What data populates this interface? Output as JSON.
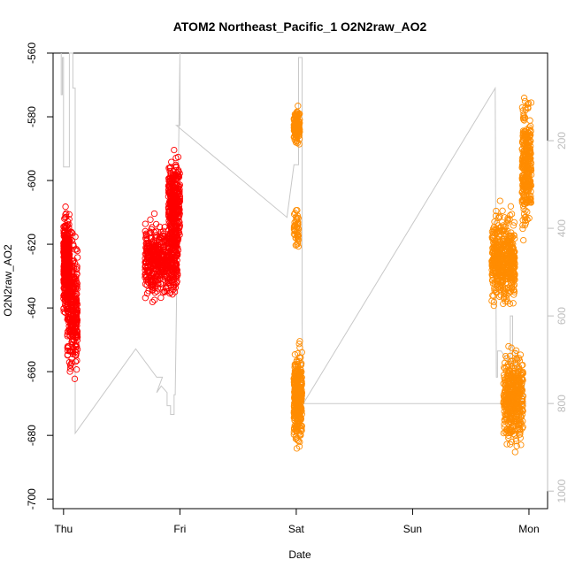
{
  "chart_data": {
    "type": "scatter",
    "title": "ATOM2 Northeast_Pacific_1 O2N2raw_AO2",
    "xlabel": "Date",
    "ylabel": "O2N2raw_AO2",
    "x_ticks": [
      "Thu",
      "Fri",
      "Sat",
      "Sun",
      "Mon"
    ],
    "x_range": [
      -0.09,
      4.16
    ],
    "ylim": [
      -703,
      -560
    ],
    "y_ticks": [
      -700,
      -680,
      -660,
      -640,
      -620,
      -600,
      -580,
      -560
    ],
    "y2_ticks": [
      200,
      400,
      600,
      800,
      1000
    ],
    "y2lim": [
      0,
      1040
    ],
    "grid": false,
    "colors": {
      "series1": "#ff0000",
      "series2": "#ff8c00",
      "secondary_line": "#c8c8c8"
    },
    "series": [
      {
        "color": "#ff0000",
        "clusters": [
          {
            "x_start": 0.0,
            "x_end": 0.05,
            "y_min": -654,
            "y_max": -595,
            "center": -626,
            "n": 420
          },
          {
            "x_start": 0.03,
            "x_end": 0.12,
            "y_min": -677,
            "y_max": -593,
            "center": -640,
            "n": 320
          },
          {
            "x_start": 0.7,
            "x_end": 0.98,
            "y_min": -646,
            "y_max": -602,
            "center": -625,
            "n": 520
          },
          {
            "x_start": 0.9,
            "x_end": 1.0,
            "y_min": -640,
            "y_max": -585,
            "center": -608,
            "n": 360
          }
        ]
      },
      {
        "color": "#ff8c00",
        "clusters": [
          {
            "x_start": 1.98,
            "x_end": 2.03,
            "y_min": -592,
            "y_max": -572,
            "center": -583,
            "n": 140
          },
          {
            "x_start": 1.98,
            "x_end": 2.02,
            "y_min": -630,
            "y_max": -600,
            "center": -615,
            "n": 50
          },
          {
            "x_start": 1.98,
            "x_end": 2.05,
            "y_min": -696,
            "y_max": -642,
            "center": -668,
            "n": 360
          },
          {
            "x_start": 3.68,
            "x_end": 3.88,
            "y_min": -650,
            "y_max": -595,
            "center": -625,
            "n": 520
          },
          {
            "x_start": 3.78,
            "x_end": 3.95,
            "y_min": -697,
            "y_max": -640,
            "center": -668,
            "n": 420
          },
          {
            "x_start": 3.94,
            "x_end": 4.02,
            "y_min": -640,
            "y_max": -564,
            "center": -595,
            "n": 320
          }
        ]
      }
    ],
    "secondary_line": {
      "x": [
        -0.02,
        -0.02,
        -0.01,
        -0.01,
        0.0,
        0.0,
        0.05,
        0.05,
        0.08,
        0.08,
        0.1,
        0.1,
        0.1,
        0.62,
        0.8,
        0.85,
        0.8,
        0.84,
        0.89,
        0.89,
        0.92,
        0.92,
        0.95,
        0.95,
        0.96,
        1.0,
        1.0,
        0.97,
        1.92,
        1.98,
        2.02,
        2.02,
        2.05,
        2.05,
        2.06,
        3.71,
        3.72,
        3.73,
        3.73,
        3.76,
        3.84,
        3.84,
        3.86,
        3.86,
        3.88,
        3.88,
        3.9,
        3.92,
        3.92,
        3.94,
        3.94,
        3.96,
        3.96,
        2.05,
        3.98
      ],
      "y2": [
        0,
        95,
        95,
        10,
        10,
        260,
        260,
        0,
        0,
        80,
        80,
        865,
        868,
        675,
        740,
        740,
        775,
        760,
        775,
        805,
        805,
        825,
        825,
        780,
        780,
        0,
        165,
        165,
        375,
        255,
        255,
        10,
        10,
        615,
        800,
        80,
        740,
        740,
        680,
        680,
        710,
        600,
        600,
        755,
        755,
        680,
        680,
        780,
        850,
        850,
        740,
        740,
        800,
        800,
        800
      ]
    }
  }
}
